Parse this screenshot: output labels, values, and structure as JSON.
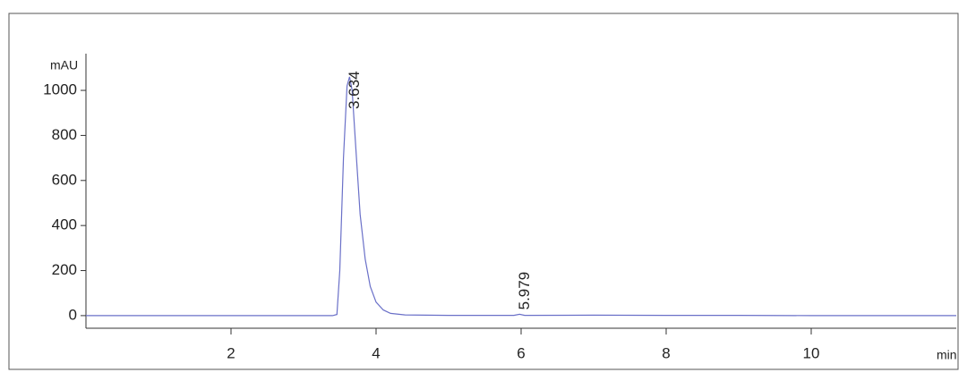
{
  "chart_data": {
    "type": "line",
    "y_label": "mAU",
    "x_label": "min",
    "x": [
      0,
      1,
      2,
      3,
      3.4,
      3.46,
      3.5,
      3.55,
      3.6,
      3.634,
      3.67,
      3.72,
      3.78,
      3.85,
      3.92,
      4.0,
      4.1,
      4.2,
      4.4,
      5,
      5.9,
      5.979,
      6.05,
      7,
      8,
      9,
      10,
      11,
      12
    ],
    "series": [
      {
        "color": "#6a70c8",
        "values": [
          0,
          0,
          0,
          0,
          0,
          5,
          200,
          700,
          1020,
          1060,
          1000,
          750,
          450,
          250,
          130,
          60,
          25,
          10,
          3,
          1,
          1,
          6,
          1,
          2,
          1,
          1,
          0,
          0,
          0
        ]
      }
    ],
    "peak_labels": [
      3.634,
      5.979
    ],
    "xlim": [
      0,
      12
    ],
    "xticks": [
      2,
      4,
      6,
      8,
      10
    ],
    "ylim": [
      -56,
      1163
    ],
    "yticks": [
      0,
      200,
      400,
      600,
      800,
      1000
    ]
  }
}
